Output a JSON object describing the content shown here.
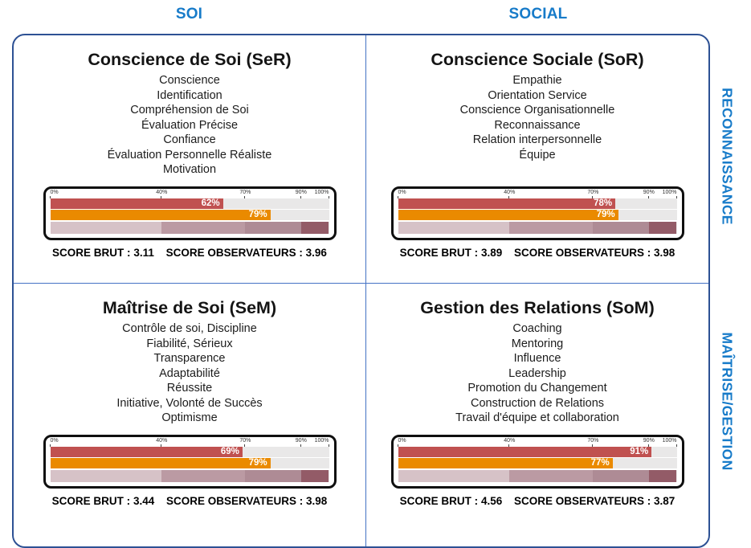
{
  "header": {
    "left": "SOI",
    "right": "SOCIAL"
  },
  "side_labels": {
    "top": "RECONNAISSANCE",
    "bottom": "MAÎTRISE/GESTION"
  },
  "score_labels": {
    "brut": "SCORE BRUT :",
    "obs": "SCORE OBSERVATEURS :"
  },
  "colors": {
    "accent_blue": "#177bc9",
    "box_border_blue": "#2d5194",
    "divider_blue": "#4472c4",
    "bar_raw_red": "#c05150",
    "bar_obs_orange": "#ea8a00",
    "track_gray": "#e9e8e8"
  },
  "axis": {
    "ticks": [
      {
        "label": "0%",
        "left": "0%"
      },
      {
        "label": "40%",
        "left": "40%"
      },
      {
        "label": "70%",
        "left": "70%"
      },
      {
        "label": "90%",
        "left": "90%"
      },
      {
        "label": "100%",
        "left": "100%"
      }
    ]
  },
  "scale_segments": [
    {
      "width": "40%",
      "color": "#d6c2c7"
    },
    {
      "width": "30%",
      "color": "#bb9aa3"
    },
    {
      "width": "20%",
      "color": "#ae8b95"
    },
    {
      "width": "10%",
      "color": "#935b67"
    }
  ],
  "quadrants": [
    {
      "title": "Conscience de Soi (SeR)",
      "items": [
        "Conscience",
        "Identification",
        "Compréhension de Soi",
        "Évaluation Précise",
        "Confiance",
        "Évaluation Personnelle Réaliste",
        "Motivation"
      ],
      "bar1": "62%",
      "bar2": "79%",
      "score_brut": "3.11",
      "score_obs": "3.96"
    },
    {
      "title": "Conscience Sociale (SoR)",
      "items": [
        "Empathie",
        "Orientation Service",
        "Conscience Organisationnelle",
        "Reconnaissance",
        "Relation interpersonnelle",
        "Équipe"
      ],
      "bar1": "78%",
      "bar2": "79%",
      "score_brut": "3.89",
      "score_obs": "3.98"
    },
    {
      "title": "Maîtrise de Soi (SeM)",
      "items": [
        "Contrôle de soi, Discipline",
        "Fiabilité, Sérieux",
        "Transparence",
        "Adaptabilité",
        "Réussite",
        "Initiative, Volonté de Succès",
        "Optimisme"
      ],
      "bar1": "69%",
      "bar2": "79%",
      "score_brut": "3.44",
      "score_obs": "3.98"
    },
    {
      "title": "Gestion des Relations (SoM)",
      "items": [
        "Coaching",
        "Mentoring",
        "Influence",
        "Leadership",
        "Promotion du Changement",
        "Construction de Relations",
        "Travail d'équipe et collaboration"
      ],
      "bar1": "91%",
      "bar2": "77%",
      "score_brut": "4.56",
      "score_obs": "3.87"
    }
  ],
  "chart_data": [
    {
      "type": "bar",
      "title": "Conscience de Soi (SeR)",
      "series": [
        {
          "name": "Score brut (%)",
          "values": [
            62
          ]
        },
        {
          "name": "Score observateurs (%)",
          "values": [
            79
          ]
        }
      ],
      "xlim": [
        0,
        100
      ],
      "axis_ticks_pct": [
        0,
        40,
        70,
        90,
        100
      ],
      "scale_bands_pct": [
        [
          0,
          40
        ],
        [
          40,
          70
        ],
        [
          70,
          90
        ],
        [
          90,
          100
        ]
      ],
      "score_brut": 3.11,
      "score_observateurs": 3.96
    },
    {
      "type": "bar",
      "title": "Conscience Sociale (SoR)",
      "series": [
        {
          "name": "Score brut (%)",
          "values": [
            78
          ]
        },
        {
          "name": "Score observateurs (%)",
          "values": [
            79
          ]
        }
      ],
      "xlim": [
        0,
        100
      ],
      "axis_ticks_pct": [
        0,
        40,
        70,
        90,
        100
      ],
      "scale_bands_pct": [
        [
          0,
          40
        ],
        [
          40,
          70
        ],
        [
          70,
          90
        ],
        [
          90,
          100
        ]
      ],
      "score_brut": 3.89,
      "score_observateurs": 3.98
    },
    {
      "type": "bar",
      "title": "Maîtrise de Soi (SeM)",
      "series": [
        {
          "name": "Score brut (%)",
          "values": [
            69
          ]
        },
        {
          "name": "Score observateurs (%)",
          "values": [
            79
          ]
        }
      ],
      "xlim": [
        0,
        100
      ],
      "axis_ticks_pct": [
        0,
        40,
        70,
        90,
        100
      ],
      "scale_bands_pct": [
        [
          0,
          40
        ],
        [
          40,
          70
        ],
        [
          70,
          90
        ],
        [
          90,
          100
        ]
      ],
      "score_brut": 3.44,
      "score_observateurs": 3.98
    },
    {
      "type": "bar",
      "title": "Gestion des Relations (SoM)",
      "series": [
        {
          "name": "Score brut (%)",
          "values": [
            91
          ]
        },
        {
          "name": "Score observateurs (%)",
          "values": [
            77
          ]
        }
      ],
      "xlim": [
        0,
        100
      ],
      "axis_ticks_pct": [
        0,
        40,
        70,
        90,
        100
      ],
      "scale_bands_pct": [
        [
          0,
          40
        ],
        [
          40,
          70
        ],
        [
          70,
          90
        ],
        [
          90,
          100
        ]
      ],
      "score_brut": 4.56,
      "score_observateurs": 3.87
    }
  ]
}
